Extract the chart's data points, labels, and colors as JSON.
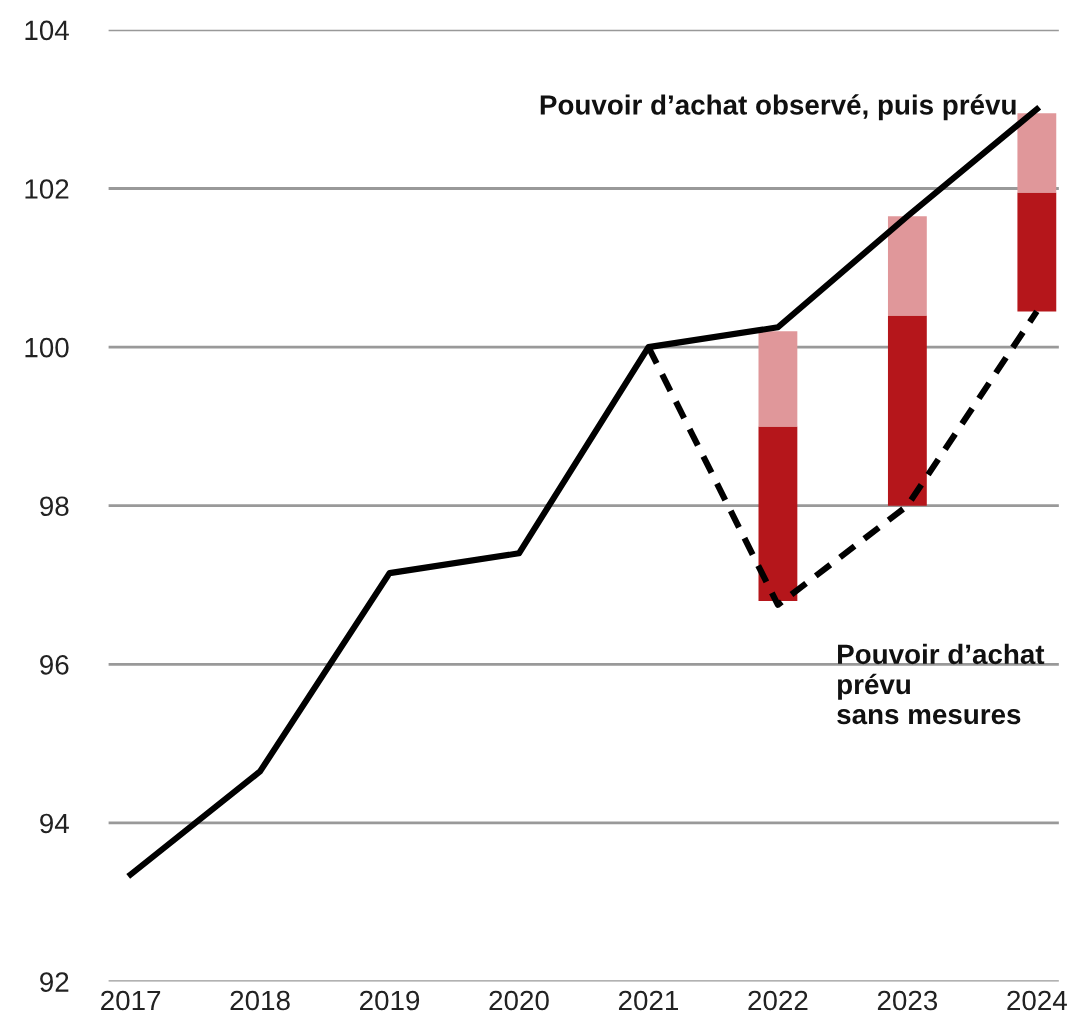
{
  "chart_data": {
    "type": "bar",
    "categories": [
      "2017",
      "2018",
      "2019",
      "2020",
      "2021",
      "2022",
      "2023",
      "2024"
    ],
    "series": [
      {
        "color": "#b5161b",
        "base": [
          null,
          null,
          null,
          null,
          null,
          96.8,
          98.0,
          100.45
        ],
        "values": [
          null,
          null,
          null,
          null,
          null,
          2.2,
          2.4,
          1.5
        ]
      },
      {
        "color": "#e0979a",
        "base": [
          null,
          null,
          null,
          null,
          null,
          99.0,
          100.4,
          101.95
        ],
        "values": [
          null,
          null,
          null,
          null,
          null,
          1.2,
          1.25,
          1.0
        ]
      },
      {
        "type": "line",
        "color": "#000000",
        "line_style": "solid",
        "values": [
          93.35,
          94.65,
          97.15,
          97.4,
          100.0,
          100.25,
          101.65,
          103.0
        ]
      },
      {
        "type": "line",
        "color": "#000000",
        "line_style": "dashed",
        "values": [
          null,
          null,
          null,
          null,
          100.0,
          96.75,
          98.0,
          100.45
        ]
      }
    ],
    "ylim": [
      92,
      104
    ],
    "yticks": [
      92,
      94,
      96,
      98,
      100,
      102,
      104
    ],
    "grid": "y",
    "annotations": [
      "Pouvoir d’achat observé, puis prévu",
      "Pouvoir d’achat\nprévu\nsans mesures"
    ]
  }
}
